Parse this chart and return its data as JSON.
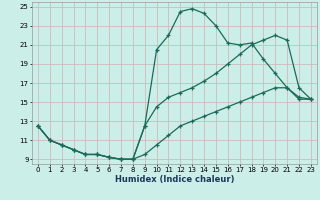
{
  "xlabel": "Humidex (Indice chaleur)",
  "bg_color": "#cceee8",
  "grid_color": "#ccbbbb",
  "line_color": "#1a6b5a",
  "xlim": [
    -0.5,
    23.5
  ],
  "ylim": [
    8.5,
    25.5
  ],
  "xticks": [
    0,
    1,
    2,
    3,
    4,
    5,
    6,
    7,
    8,
    9,
    10,
    11,
    12,
    13,
    14,
    15,
    16,
    17,
    18,
    19,
    20,
    21,
    22,
    23
  ],
  "yticks": [
    9,
    11,
    13,
    15,
    17,
    19,
    21,
    23,
    25
  ],
  "line1_x": [
    0,
    1,
    2,
    3,
    4,
    5,
    6,
    7,
    8,
    9,
    10,
    11,
    12,
    13,
    14,
    15,
    16,
    17,
    18,
    19,
    20,
    21,
    22,
    23
  ],
  "line1_y": [
    12.5,
    11.0,
    10.5,
    10.0,
    9.5,
    9.5,
    9.2,
    9.0,
    9.0,
    12.5,
    20.5,
    22.0,
    24.5,
    24.8,
    24.3,
    23.0,
    21.2,
    21.0,
    21.2,
    19.5,
    18.0,
    16.5,
    15.3,
    15.3
  ],
  "line2_x": [
    0,
    1,
    2,
    3,
    4,
    5,
    6,
    7,
    8,
    9,
    10,
    11,
    12,
    13,
    14,
    15,
    16,
    17,
    18,
    19,
    20,
    21,
    22,
    23
  ],
  "line2_y": [
    12.5,
    11.0,
    10.5,
    10.0,
    9.5,
    9.5,
    9.2,
    9.0,
    9.0,
    12.5,
    14.5,
    15.5,
    16.0,
    16.5,
    17.2,
    18.0,
    19.0,
    20.0,
    21.0,
    21.5,
    22.0,
    21.5,
    16.5,
    15.3
  ],
  "line3_x": [
    0,
    1,
    2,
    3,
    4,
    5,
    6,
    7,
    8,
    9,
    10,
    11,
    12,
    13,
    14,
    15,
    16,
    17,
    18,
    19,
    20,
    21,
    22,
    23
  ],
  "line3_y": [
    12.5,
    11.0,
    10.5,
    10.0,
    9.5,
    9.5,
    9.2,
    9.0,
    9.0,
    9.5,
    10.5,
    11.5,
    12.5,
    13.0,
    13.5,
    14.0,
    14.5,
    15.0,
    15.5,
    16.0,
    16.5,
    16.5,
    15.5,
    15.3
  ]
}
